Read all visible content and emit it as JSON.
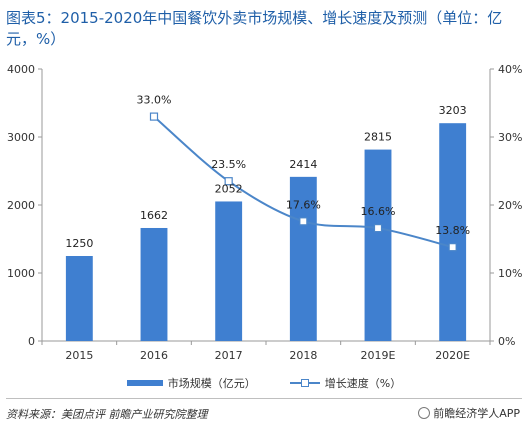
{
  "title": "图表5：2015-2020年中国餐饮外卖市场规模、增长速度及预测（单位：亿元，%）",
  "chart_data": {
    "type": "bar",
    "categories": [
      "2015",
      "2016",
      "2017",
      "2018",
      "2019E",
      "2020E"
    ],
    "series": [
      {
        "name": "市场规模（亿元）",
        "type": "bar",
        "axis": "left",
        "values": [
          1250,
          1662,
          2052,
          2414,
          2815,
          3203
        ],
        "labels": [
          "1250",
          "1662",
          "2052",
          "2414",
          "2815",
          "3203"
        ],
        "color": "#3f7fd0"
      },
      {
        "name": "增长速度（%）",
        "type": "line",
        "axis": "right",
        "values": [
          null,
          33.0,
          23.5,
          17.6,
          16.6,
          13.8
        ],
        "labels": [
          "",
          "33.0%",
          "23.5%",
          "17.6%",
          "16.6%",
          "13.8%"
        ],
        "color": "#4b86c9"
      }
    ],
    "y_left": {
      "min": 0,
      "max": 4000,
      "ticks": [
        "0",
        "1000",
        "2000",
        "3000",
        "4000"
      ]
    },
    "y_right": {
      "min": 0,
      "max": 40,
      "ticks": [
        "0%",
        "10%",
        "20%",
        "30%",
        "40%"
      ]
    },
    "legend_position": "bottom",
    "grid": false
  },
  "source": "资料来源：美团点评 前瞻产业研究院整理",
  "brand": "前瞻经济学人APP"
}
